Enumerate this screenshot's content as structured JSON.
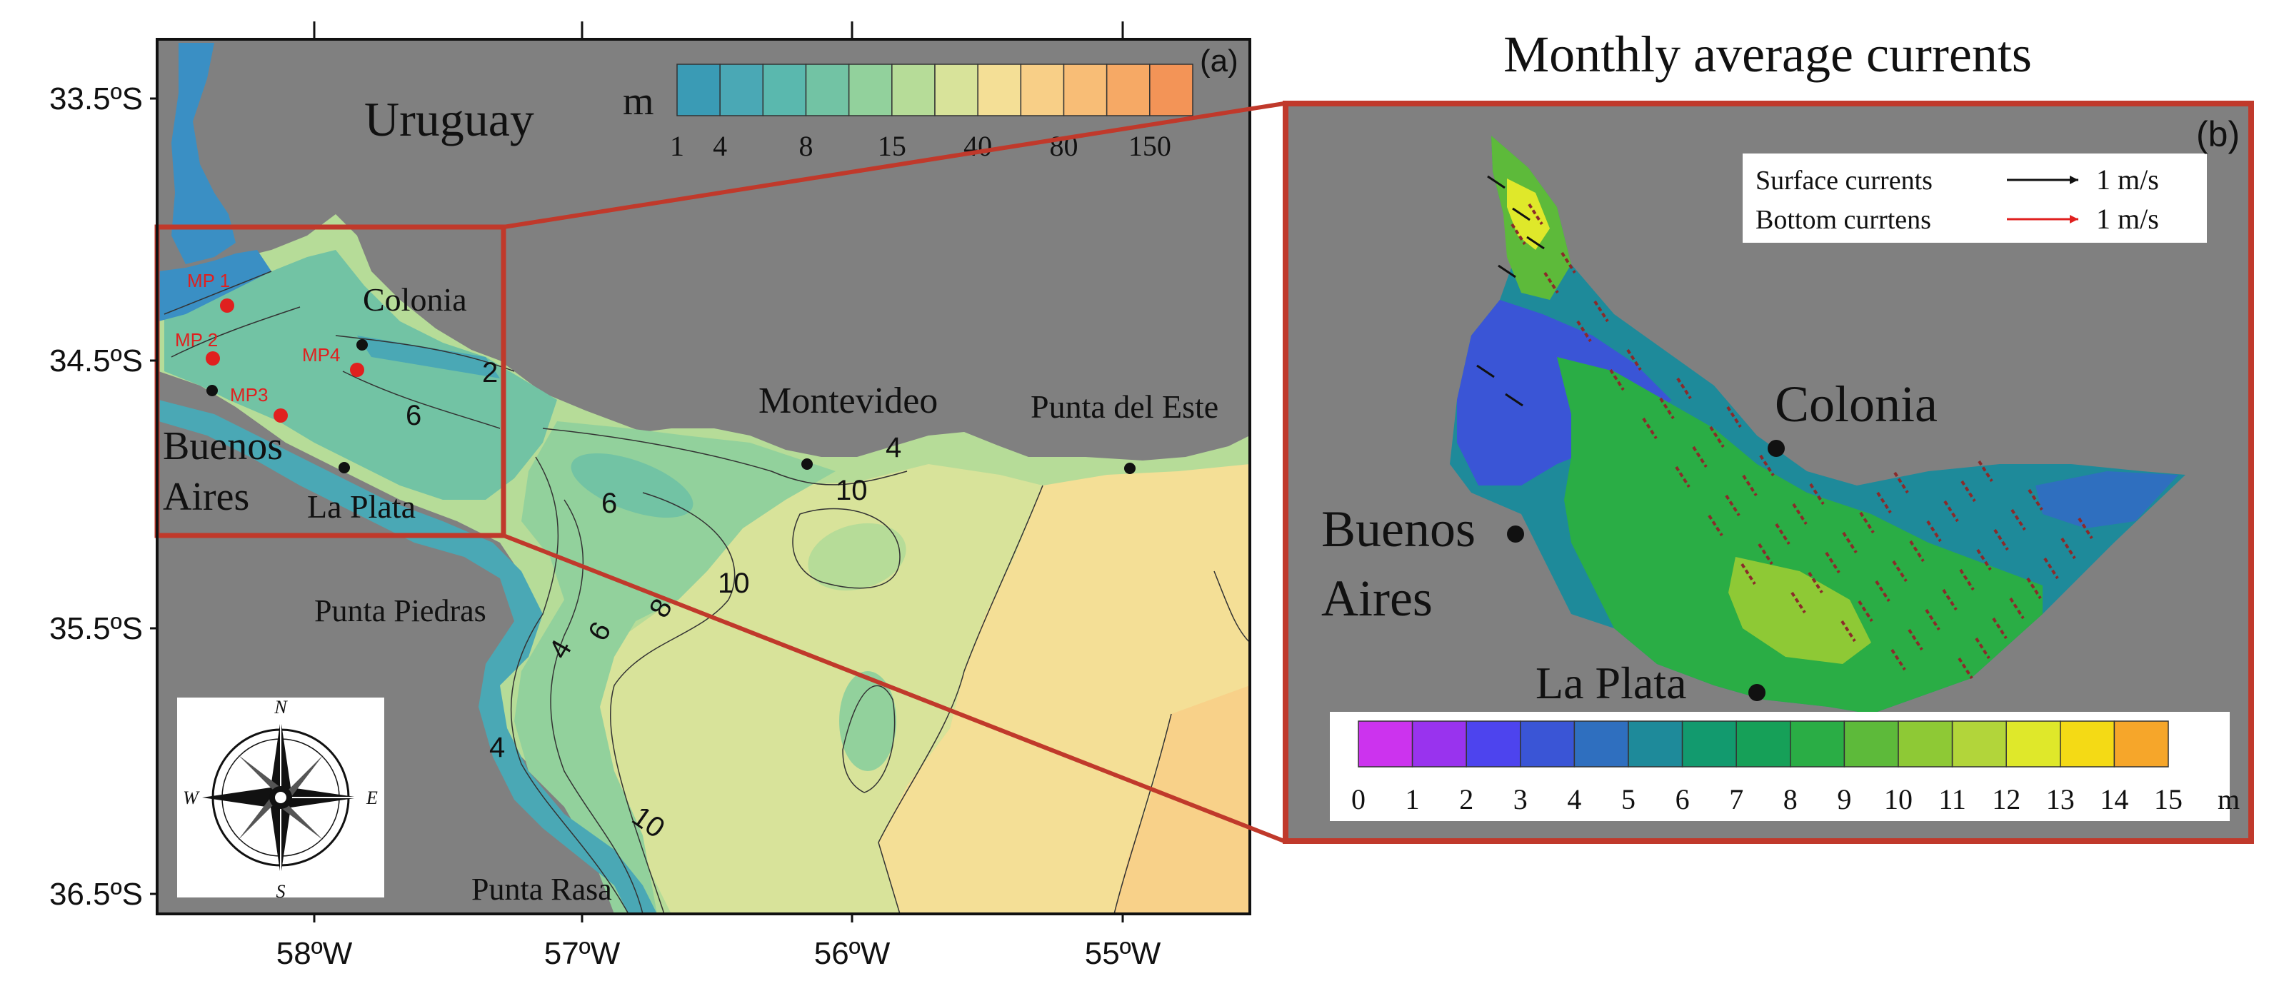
{
  "panel_a": {
    "label": "(a)",
    "lat_ticks": [
      "33.5ºS",
      "34.5ºS",
      "35.5ºS",
      "36.5ºS"
    ],
    "lon_ticks": [
      "58ºW",
      "57ºW",
      "56ºW",
      "55ºW"
    ],
    "colorbar": {
      "unit": "m",
      "ticks": [
        "1",
        "4",
        "8",
        "15",
        "40",
        "80",
        "150"
      ],
      "colors": [
        "#3a9bb5",
        "#4aa8b5",
        "#5ab8ae",
        "#72c3a4",
        "#92d19c",
        "#b6dc98",
        "#d8e39a",
        "#f4df96",
        "#f8cf87",
        "#f8bd76",
        "#f6a965",
        "#f39457"
      ]
    },
    "places": {
      "uruguay": "Uruguay",
      "colonia": "Colonia",
      "montevideo": "Montevideo",
      "punta_del_este": "Punta del Este",
      "buenos": "Buenos",
      "aires": "Aires",
      "la_plata": "La Plata",
      "punta_piedras": "Punta Piedras",
      "punta_rasa": "Punta Rasa"
    },
    "stations": [
      "MP 1",
      "MP 2",
      "MP3",
      "MP4"
    ],
    "contour_labels": [
      "2",
      "6",
      "6",
      "10",
      "4",
      "10",
      "8",
      "6",
      "4",
      "4",
      "10"
    ],
    "compass": {
      "n": "N",
      "s": "S",
      "e": "E",
      "w": "W"
    },
    "colors": {
      "land": "#808080",
      "box": "#c0392b",
      "station": "#e0201f",
      "river_blue": "#3a8fc4"
    }
  },
  "panel_b": {
    "title": "Monthly average currents",
    "label": "(b)",
    "legend": {
      "surface": "Surface currents",
      "surface_value": "1 m/s",
      "bottom": "Bottom currtens",
      "bottom_value": "1 m/s"
    },
    "places": {
      "colonia": "Colonia",
      "buenos": "Buenos",
      "aires": "Aires",
      "la_plata": "La Plata"
    },
    "colorbar": {
      "unit": "m",
      "ticks": [
        "0",
        "1",
        "2",
        "3",
        "4",
        "5",
        "6",
        "7",
        "8",
        "9",
        "10",
        "11",
        "12",
        "13",
        "14",
        "15"
      ],
      "colors": [
        "#cc33ee",
        "#9933ee",
        "#4d44ee",
        "#3a55d6",
        "#2f6fbf",
        "#1e8a9a",
        "#129a6e",
        "#16a058",
        "#2aad45",
        "#5dba3a",
        "#8ec935",
        "#b2d53a",
        "#dfe82a",
        "#f4da15",
        "#f6a62a"
      ]
    }
  }
}
